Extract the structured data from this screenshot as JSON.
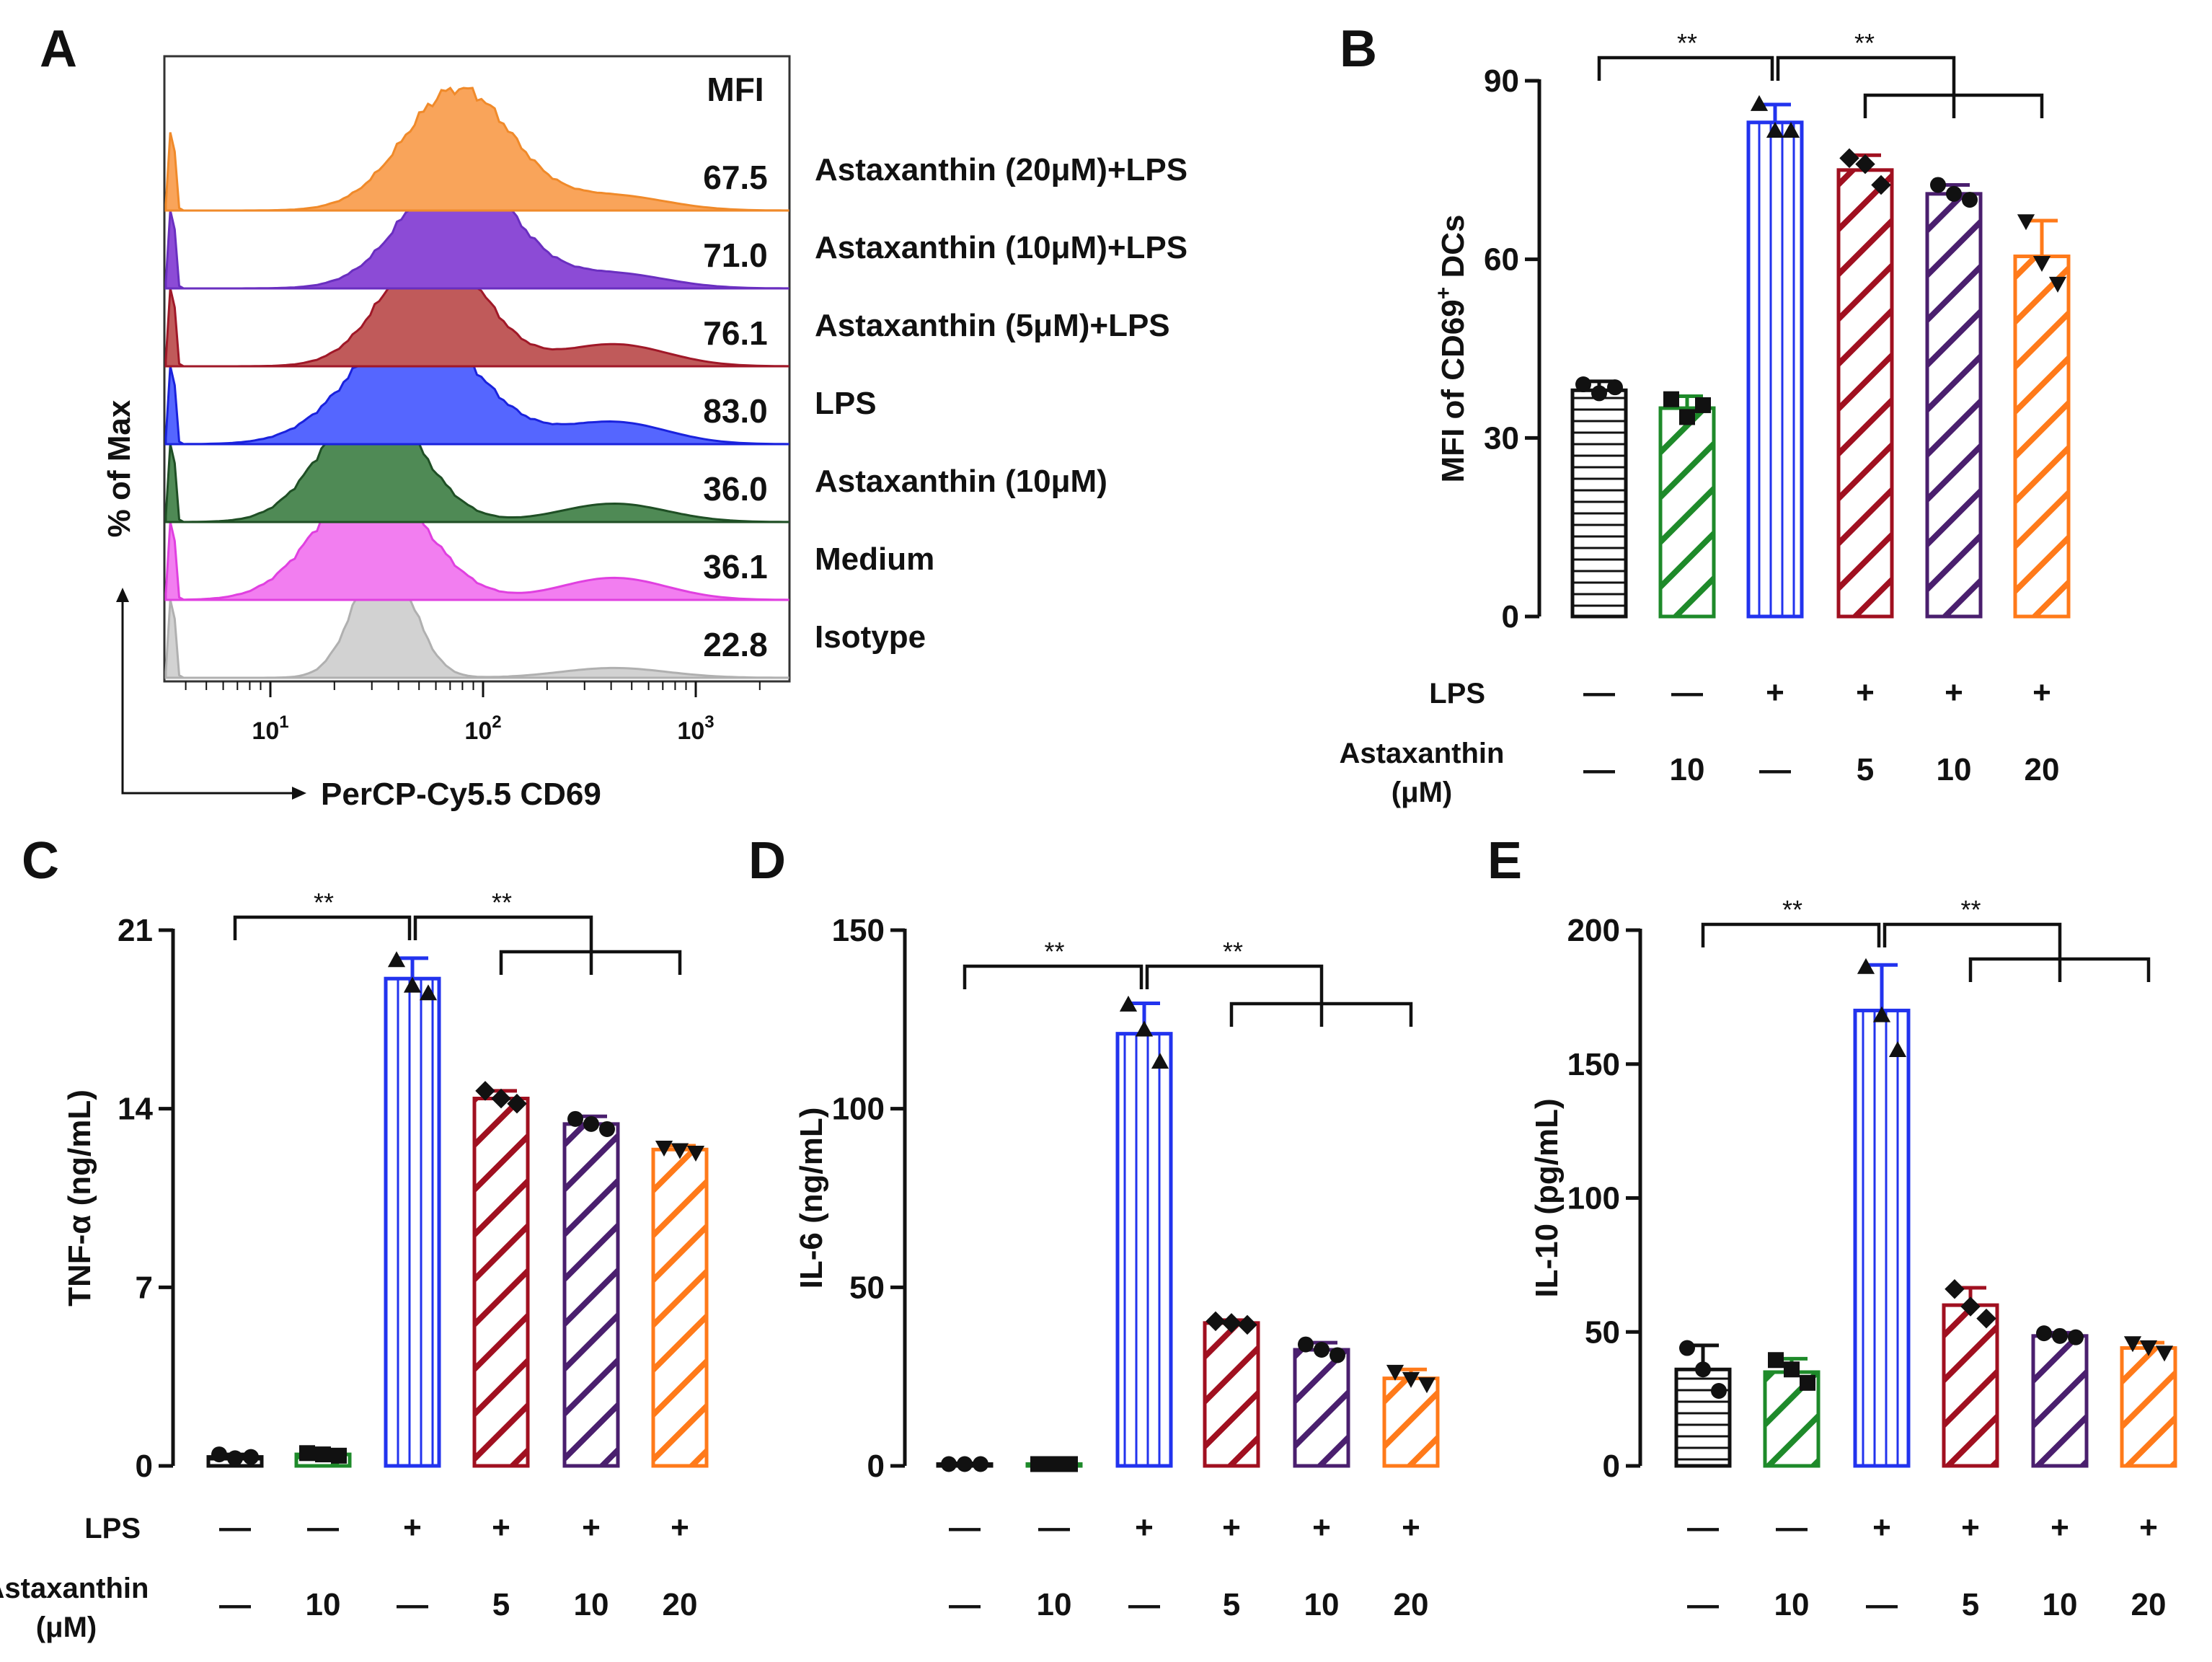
{
  "colors": {
    "black": "#111111",
    "green": "#1e8a2a",
    "blue": "#2233ee",
    "darkred": "#a01020",
    "purple": "#4a1f6e",
    "orange": "#ff7a1a",
    "hist_orange": "#f9a45a",
    "hist_purple": "#8c4bd6",
    "hist_red": "#c05a5a",
    "hist_blue": "#5566ff",
    "hist_green": "#4f8a55",
    "hist_magenta": "#f27ef0",
    "hist_gray": "#d2d2d2"
  },
  "panel_a": {
    "letter": "A",
    "mfi_header": "MFI",
    "x_label": "PerCP-Cy5.5 CD69",
    "y_label": "% of Max",
    "x_ticks": [
      {
        "base": "10",
        "exp": "1"
      },
      {
        "base": "10",
        "exp": "2"
      },
      {
        "base": "10",
        "exp": "3"
      }
    ],
    "rows": [
      {
        "label": "Astaxanthin (20μM)+LPS",
        "mfi": "67.5",
        "color_key": "hist_orange",
        "outline": "#f08a2a"
      },
      {
        "label": "Astaxanthin (10μM)+LPS",
        "mfi": "71.0",
        "color_key": "hist_purple",
        "outline": "#6a2fc0"
      },
      {
        "label": "Astaxanthin (5μM)+LPS",
        "mfi": "76.1",
        "color_key": "hist_red",
        "outline": "#a01828"
      },
      {
        "label": "LPS",
        "mfi": "83.0",
        "color_key": "hist_blue",
        "outline": "#1a22dd"
      },
      {
        "label": "Astaxanthin (10μM)",
        "mfi": "36.0",
        "color_key": "hist_green",
        "outline": "#1f4f25"
      },
      {
        "label": "Medium",
        "mfi": "36.1",
        "color_key": "hist_magenta",
        "outline": "#e040e0"
      },
      {
        "label": "Isotype",
        "mfi": "22.8",
        "color_key": "hist_gray",
        "outline": "#b0b0b0"
      }
    ]
  },
  "chart_data": [
    {
      "panel": "B",
      "type": "bar",
      "ylabel": "MFI of CD69",
      "ylabel_sup": "+",
      "ylabel_tail": " DCs",
      "ylim": [
        0,
        90
      ],
      "yticks": [
        "0",
        "30",
        "60",
        "90"
      ],
      "lps_label": "LPS",
      "astax_label": "Astaxanthin",
      "astax_unit": "(μM)",
      "significance": [
        "**",
        "**"
      ],
      "groups": [
        {
          "lps": "—",
          "astax": "—",
          "value": 38,
          "error": 1.5,
          "points": [
            39,
            37.5,
            38.5
          ],
          "marker": "circle"
        },
        {
          "lps": "—",
          "astax": "10",
          "value": 35,
          "error": 2,
          "points": [
            36.5,
            33.5,
            35.5
          ],
          "marker": "square"
        },
        {
          "lps": "+",
          "astax": "—",
          "value": 83,
          "error": 3,
          "points": [
            86,
            81.5,
            81.5
          ],
          "marker": "triangle"
        },
        {
          "lps": "+",
          "astax": "5",
          "value": 75,
          "error": 2.5,
          "points": [
            77,
            76,
            72.5
          ],
          "marker": "diamond"
        },
        {
          "lps": "+",
          "astax": "10",
          "value": 71,
          "error": 1.5,
          "points": [
            72.5,
            71,
            70
          ],
          "marker": "circle"
        },
        {
          "lps": "+",
          "astax": "20",
          "value": 60.5,
          "error": 6,
          "points": [
            66.5,
            59.5,
            56
          ],
          "marker": "invtriangle"
        }
      ]
    },
    {
      "panel": "C",
      "type": "bar",
      "ylabel": "TNF-α (ng/mL)",
      "ylabel_sup": "",
      "ylabel_tail": "",
      "ylim": [
        0,
        21
      ],
      "yticks": [
        "0",
        "7",
        "14",
        "21"
      ],
      "lps_label": "LPS",
      "astax_label": "Astaxanthin",
      "astax_unit": "(μM)",
      "significance": [
        "**",
        "**"
      ],
      "groups": [
        {
          "lps": "—",
          "astax": "—",
          "value": 0.35,
          "error": 0.1,
          "points": [
            0.45,
            0.3,
            0.35
          ],
          "marker": "circle"
        },
        {
          "lps": "—",
          "astax": "10",
          "value": 0.45,
          "error": 0.1,
          "points": [
            0.5,
            0.45,
            0.4
          ],
          "marker": "square"
        },
        {
          "lps": "+",
          "astax": "—",
          "value": 19.1,
          "error": 0.8,
          "points": [
            19.8,
            18.8,
            18.5
          ],
          "marker": "triangle"
        },
        {
          "lps": "+",
          "astax": "5",
          "value": 14.4,
          "error": 0.3,
          "points": [
            14.7,
            14.4,
            14.2
          ],
          "marker": "diamond"
        },
        {
          "lps": "+",
          "astax": "10",
          "value": 13.4,
          "error": 0.3,
          "points": [
            13.6,
            13.4,
            13.2
          ],
          "marker": "circle"
        },
        {
          "lps": "+",
          "astax": "20",
          "value": 12.4,
          "error": 0.15,
          "points": [
            12.5,
            12.4,
            12.3
          ],
          "marker": "invtriangle"
        }
      ]
    },
    {
      "panel": "D",
      "type": "bar",
      "ylabel": "IL-6 (ng/mL)",
      "ylabel_sup": "",
      "ylabel_tail": "",
      "ylim": [
        0,
        150
      ],
      "yticks": [
        "0",
        "50",
        "100",
        "150"
      ],
      "lps_label": "",
      "astax_label": "",
      "astax_unit": "",
      "significance": [
        "**",
        "**"
      ],
      "groups": [
        {
          "lps": "—",
          "astax": "—",
          "value": 0.5,
          "error": 0.2,
          "points": [
            0.5,
            0.5,
            0.5
          ],
          "marker": "circle"
        },
        {
          "lps": "—",
          "astax": "10",
          "value": 0.5,
          "error": 0.2,
          "points": [
            0.5,
            0.5,
            0.5
          ],
          "marker": "square"
        },
        {
          "lps": "+",
          "astax": "—",
          "value": 121,
          "error": 8.5,
          "points": [
            129,
            122,
            113
          ],
          "marker": "triangle"
        },
        {
          "lps": "+",
          "astax": "5",
          "value": 40,
          "error": 0.8,
          "points": [
            40.5,
            40,
            39.5
          ],
          "marker": "diamond"
        },
        {
          "lps": "+",
          "astax": "10",
          "value": 32.5,
          "error": 2,
          "points": [
            34,
            32.5,
            31
          ],
          "marker": "circle"
        },
        {
          "lps": "+",
          "astax": "20",
          "value": 24.5,
          "error": 2.5,
          "points": [
            26.5,
            24.5,
            23
          ],
          "marker": "invtriangle"
        }
      ]
    },
    {
      "panel": "E",
      "type": "bar",
      "ylabel": "IL-10 (pg/mL)",
      "ylabel_sup": "",
      "ylabel_tail": "",
      "ylim": [
        0,
        200
      ],
      "yticks": [
        "0",
        "50",
        "100",
        "150",
        "200"
      ],
      "lps_label": "",
      "astax_label": "",
      "astax_unit": "",
      "significance": [
        "**",
        "**"
      ],
      "groups": [
        {
          "lps": "—",
          "astax": "—",
          "value": 36,
          "error": 9,
          "points": [
            44,
            36,
            28
          ],
          "marker": "circle"
        },
        {
          "lps": "—",
          "astax": "10",
          "value": 35,
          "error": 5,
          "points": [
            39.5,
            36,
            31
          ],
          "marker": "square"
        },
        {
          "lps": "+",
          "astax": "—",
          "value": 170,
          "error": 17,
          "points": [
            186,
            168,
            155
          ],
          "marker": "triangle"
        },
        {
          "lps": "+",
          "astax": "5",
          "value": 60,
          "error": 6.5,
          "points": [
            66,
            59.5,
            55
          ],
          "marker": "diamond"
        },
        {
          "lps": "+",
          "astax": "10",
          "value": 48.5,
          "error": 1.2,
          "points": [
            49.5,
            48.5,
            48
          ],
          "marker": "circle"
        },
        {
          "lps": "+",
          "astax": "20",
          "value": 44,
          "error": 2,
          "points": [
            46,
            44.5,
            42.5
          ],
          "marker": "invtriangle"
        }
      ]
    }
  ]
}
